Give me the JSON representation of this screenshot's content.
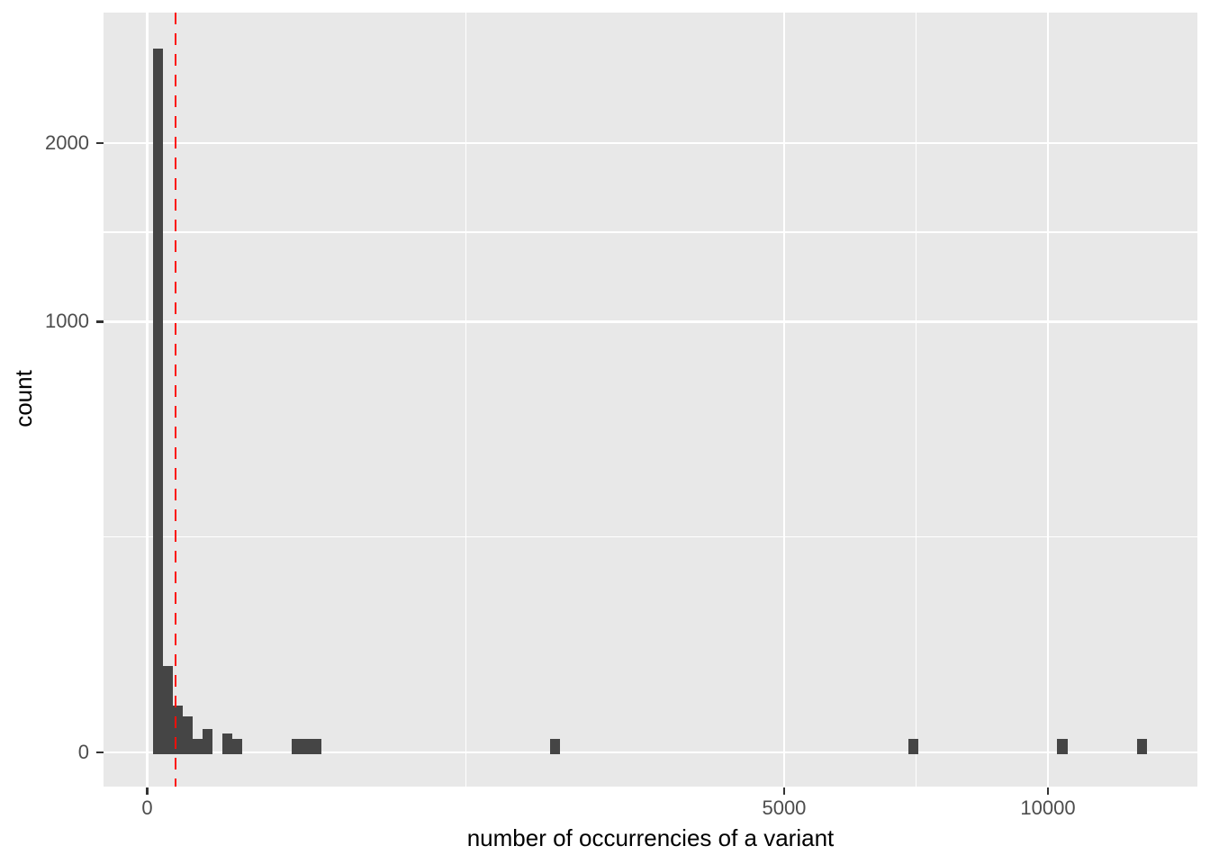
{
  "colors": {
    "background": "#ffffff",
    "panel_background": "#E8E8E8",
    "grid_major": "#FFFFFF",
    "grid_minor": "#FFFFFF",
    "bar_fill": "#454545",
    "reference_line": "#FB100B",
    "axis_text": "#4D4D4D",
    "axis_title": "#000000",
    "tick_mark": "#333333"
  },
  "chart_data": {
    "type": "histogram",
    "title": "",
    "xlabel": "number of occurrencies of a variant",
    "ylabel": "count",
    "x_scale": "sqrt",
    "y_scale": "sqrt",
    "x_ticks": [
      {
        "value": 0,
        "label": "0"
      },
      {
        "value": 5000,
        "label": "5000"
      },
      {
        "value": 10000,
        "label": "10000"
      }
    ],
    "y_ticks": [
      {
        "value": 0,
        "label": "0"
      },
      {
        "value": 1000,
        "label": "1000"
      },
      {
        "value": 2000,
        "label": "2000"
      }
    ],
    "x_minor_gridlines": [
      1250,
      7286
    ],
    "y_minor_gridlines": [
      250,
      1457
    ],
    "xlim_sqrt_units": [
      -4.85,
      116.6
    ],
    "ylim_sqrt_units": [
      -2.45,
      54.3
    ],
    "bins": [
      {
        "x0": 0.4,
        "x1": 3.1,
        "count": 2670
      },
      {
        "x0": 3.1,
        "x1": 8.1,
        "count": 40
      },
      {
        "x0": 8.1,
        "x1": 15.6,
        "count": 12
      },
      {
        "x0": 15.6,
        "x1": 25.5,
        "count": 7
      },
      {
        "x0": 25.5,
        "x1": 37.8,
        "count": 1
      },
      {
        "x0": 37.8,
        "x1": 52.6,
        "count": 3
      },
      {
        "x0": 69.7,
        "x1": 89.3,
        "count": 2
      },
      {
        "x0": 89.3,
        "x1": 111,
        "count": 1
      },
      {
        "x0": 257,
        "x1": 374,
        "count": 1
      },
      {
        "x0": 2001,
        "x1": 2100,
        "count": 1
      },
      {
        "x0": 7142,
        "x1": 7329,
        "count": 1
      },
      {
        "x0": 10201,
        "x1": 10445,
        "count": 1
      },
      {
        "x0": 12078,
        "x1": 12321,
        "count": 1
      }
    ],
    "reference_line": {
      "x": 10,
      "orientation": "vertical",
      "style": "dashed"
    }
  }
}
